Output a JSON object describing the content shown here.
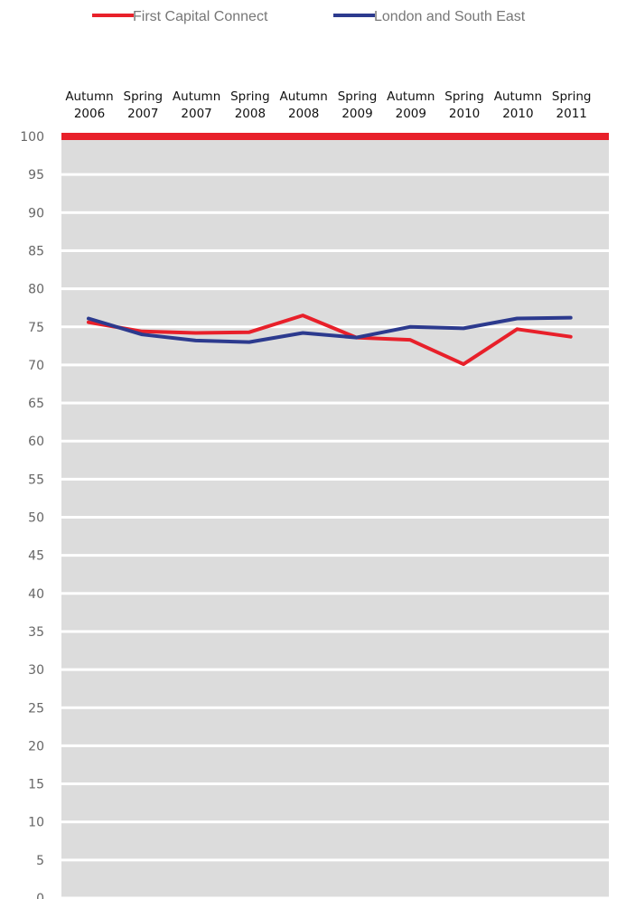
{
  "chart_data": {
    "type": "line",
    "categories": [
      [
        "Autumn",
        "2006"
      ],
      [
        "Spring",
        "2007"
      ],
      [
        "Autumn",
        "2007"
      ],
      [
        "Spring",
        "2008"
      ],
      [
        "Autumn",
        "2008"
      ],
      [
        "Spring",
        "2009"
      ],
      [
        "Autumn",
        "2009"
      ],
      [
        "Spring",
        "2010"
      ],
      [
        "Autumn",
        "2010"
      ],
      [
        "Spring",
        "2011"
      ]
    ],
    "series": [
      {
        "name": "First Capital Connect",
        "color": "#e8202a",
        "values": [
          75.6,
          74.4,
          74.2,
          74.3,
          76.5,
          73.6,
          73.3,
          70.1,
          74.7,
          73.7
        ]
      },
      {
        "name": "London and South East",
        "color": "#2c3a8e",
        "values": [
          76.1,
          74.0,
          73.2,
          73.0,
          74.2,
          73.6,
          75.0,
          74.8,
          76.1,
          76.2
        ]
      }
    ],
    "ylim": [
      0,
      100
    ],
    "yticks": [
      0,
      5,
      10,
      15,
      20,
      25,
      30,
      35,
      40,
      45,
      50,
      55,
      60,
      65,
      70,
      75,
      80,
      85,
      90,
      95,
      100
    ],
    "target_line": {
      "value": 100,
      "color": "#e8202a"
    },
    "band_color": "#dcdcdc",
    "legend_position": "top-center",
    "category_labels_position": "top"
  }
}
